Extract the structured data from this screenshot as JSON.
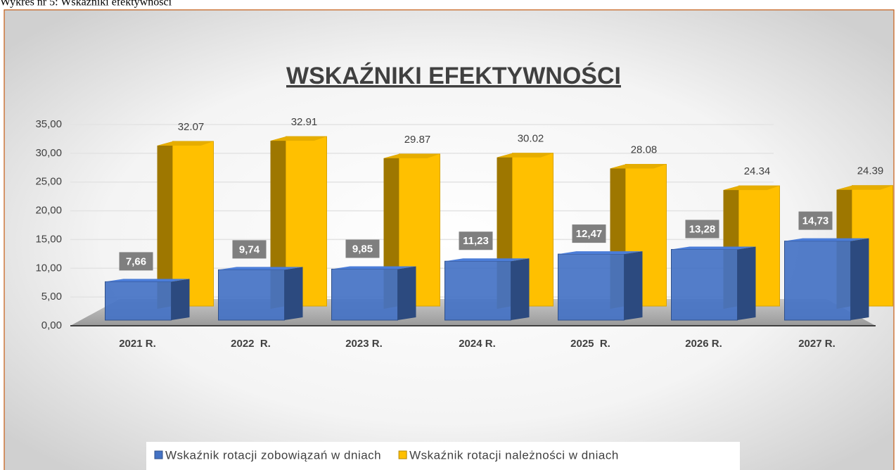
{
  "caption": "Wykres nr 5: Wskaźniki efektywności",
  "chart_data": {
    "type": "bar3d",
    "title": "WSKAŹNIKI EFEKTYWNOŚCI",
    "categories": [
      "2021 R.",
      "2022  R.",
      "2023 R.",
      "2024 R.",
      "2025  R.",
      "2026 R.",
      "2027 R."
    ],
    "series": [
      {
        "name": "Wskaźnik rotacji zobowiązań w dniach",
        "color": "#4472c4",
        "values": [
          7.66,
          9.74,
          9.85,
          11.23,
          12.47,
          13.28,
          14.73
        ],
        "value_labels": [
          "7,66",
          "9,74",
          "9,85",
          "11,23",
          "12,47",
          "13,28",
          "14,73"
        ]
      },
      {
        "name": "Wskaźnik rotacji należności w dniach",
        "color": "#ffc000",
        "values": [
          32.07,
          32.91,
          29.87,
          30.02,
          28.08,
          24.34,
          24.39
        ]
      }
    ],
    "ylim": [
      0,
      35
    ],
    "yticks": [
      {
        "value": 0,
        "label": "0,00"
      },
      {
        "value": 5,
        "label": "5,00"
      },
      {
        "value": 10,
        "label": "10,00"
      },
      {
        "value": 15,
        "label": "15,00"
      },
      {
        "value": 20,
        "label": "20,00"
      },
      {
        "value": 25,
        "label": "25,00"
      },
      {
        "value": 30,
        "label": "30,00"
      },
      {
        "value": 35,
        "label": "35,00"
      }
    ],
    "grid": true,
    "legend": "bottom"
  }
}
